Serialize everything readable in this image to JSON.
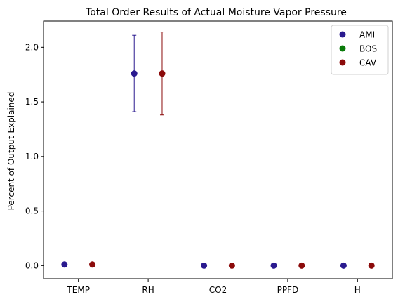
{
  "chart_data": {
    "type": "scatter",
    "title": "Total Order Results of Actual Moisture Vapor Pressure",
    "xlabel": "",
    "ylabel": "Percent of Output Explained",
    "categories": [
      "TEMP",
      "RH",
      "CO2",
      "PPFD",
      "H"
    ],
    "ylim": [
      -0.12,
      2.24
    ],
    "yticks": [
      0.0,
      0.5,
      1.0,
      1.5,
      2.0
    ],
    "ytick_labels": [
      "0.0",
      "0.5",
      "1.0",
      "1.5",
      "2.0"
    ],
    "grid": false,
    "legend_position": "top-right",
    "series": [
      {
        "name": "AMI",
        "color": "#2a1a8f",
        "values": [
          0.01,
          1.76,
          0.0,
          0.0,
          0.0
        ],
        "err_low": [
          null,
          1.41,
          null,
          null,
          null
        ],
        "err_high": [
          null,
          2.11,
          null,
          null,
          null
        ]
      },
      {
        "name": "BOS",
        "color": "#0a7a0a",
        "values": [
          null,
          null,
          null,
          null,
          null
        ],
        "err_low": [
          null,
          null,
          null,
          null,
          null
        ],
        "err_high": [
          null,
          null,
          null,
          null,
          null
        ]
      },
      {
        "name": "CAV",
        "color": "#8b0a0a",
        "values": [
          0.01,
          1.76,
          0.0,
          0.0,
          0.0
        ],
        "err_low": [
          null,
          1.38,
          null,
          null,
          null
        ],
        "err_high": [
          null,
          2.14,
          null,
          null,
          null
        ]
      }
    ]
  }
}
